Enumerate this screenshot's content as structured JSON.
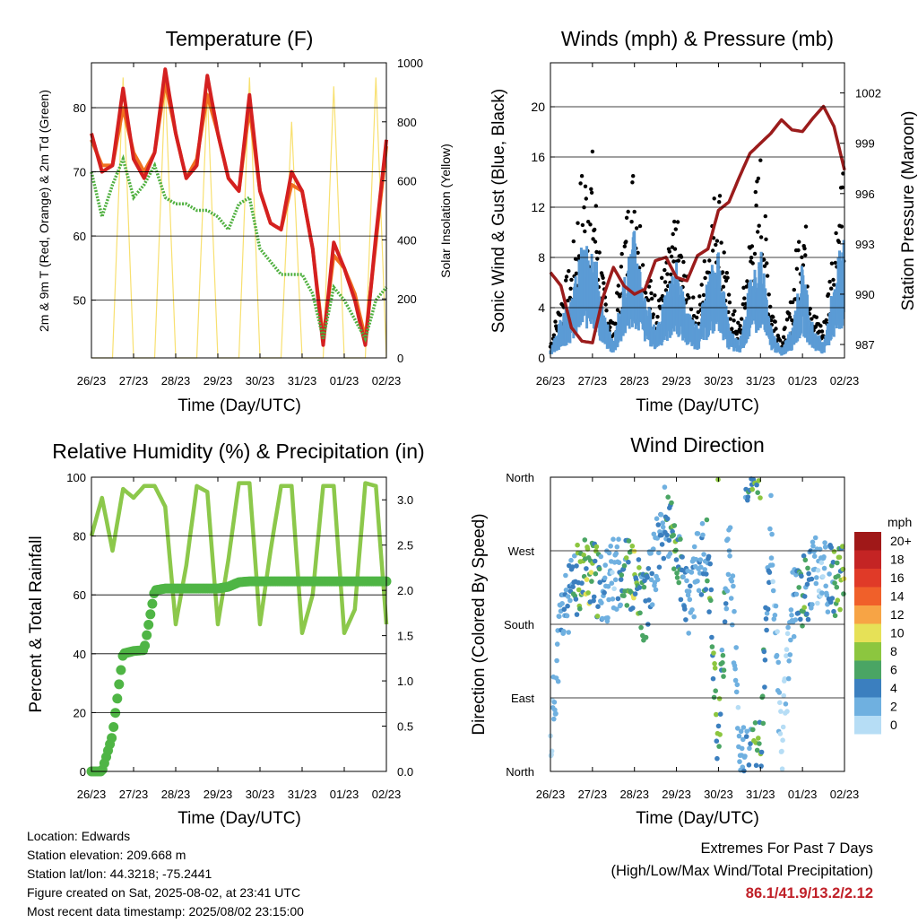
{
  "colors": {
    "t2m": "#d42020",
    "t9m": "#f07020",
    "td": "#50b040",
    "solar": "#f8e070",
    "gust": "#000000",
    "wind": "#5b9bd5",
    "pressure": "#9b1c1c",
    "rh": "#8cc84b",
    "precip": "#4fb545"
  },
  "day_ticks": [
    "26/23",
    "27/23",
    "28/23",
    "29/23",
    "30/23",
    "31/23",
    "01/23",
    "02/23"
  ],
  "x_label": "Time (Day/UTC)",
  "panels": {
    "temperature": {
      "title": "Temperature (F)",
      "ylabel_left": "2m & 9m T (Red, Orange) & 2m Td (Green)",
      "ylabel_right": "Solar Insolation (Yellow)",
      "left_ticks": [
        "50",
        "60",
        "70",
        "80"
      ],
      "right_ticks": [
        "0",
        "200",
        "400",
        "600",
        "800",
        "1000"
      ]
    },
    "winds": {
      "title": "Winds (mph) & Pressure (mb)",
      "ylabel_left": "Sonic Wind & Gust (Blue, Black)",
      "ylabel_right": "Station Pressure (Maroon)",
      "left_ticks": [
        "0",
        "4",
        "8",
        "12",
        "16",
        "20"
      ],
      "right_ticks": [
        "987",
        "990",
        "993",
        "996",
        "999",
        "1002"
      ]
    },
    "humidity": {
      "title": "Relative Humidity (%) & Precipitation (in)",
      "ylabel_left": "Percent & Total Rainfall",
      "left_ticks": [
        "0",
        "20",
        "40",
        "60",
        "80",
        "100"
      ],
      "right_ticks": [
        "0.0",
        "0.5",
        "1.0",
        "1.5",
        "2.0",
        "2.5",
        "3.0"
      ]
    },
    "direction": {
      "title": "Wind Direction",
      "ylabel_left": "Direction (Colored By Speed)",
      "dir_ticks": [
        "North",
        "East",
        "South",
        "West",
        "North"
      ],
      "legend_title": "mph",
      "legend_labels": [
        "20+",
        "18",
        "16",
        "14",
        "12",
        "10",
        "8",
        "6",
        "4",
        "2",
        "0"
      ],
      "legend_colors": [
        "#a01818",
        "#c42424",
        "#e03a28",
        "#f0602a",
        "#f7a445",
        "#e6e157",
        "#8cc63f",
        "#4aa564",
        "#3b7fbf",
        "#6fb0e0",
        "#b6ddf5"
      ]
    }
  },
  "chart_data": [
    {
      "type": "line",
      "title": "Temperature (F)",
      "xlabel": "Time (Day/UTC)",
      "ylabel": "2m & 9m T (Red, Orange) & 2m Td (Green)",
      "ylabel_right": "Solar Insolation (Yellow)",
      "x": [
        0.0,
        0.25,
        0.5,
        0.75,
        1.0,
        1.25,
        1.5,
        1.75,
        2.0,
        2.25,
        2.5,
        2.75,
        3.0,
        3.25,
        3.5,
        3.75,
        4.0,
        4.25,
        4.5,
        4.75,
        5.0,
        5.25,
        5.5,
        5.75,
        6.0,
        6.25,
        6.5,
        6.75,
        7.0
      ],
      "ylim": [
        41,
        87
      ],
      "ylim_right": [
        0,
        1000
      ],
      "series": [
        {
          "name": "2m T",
          "axis": "left",
          "values": [
            76,
            70,
            71,
            83,
            72,
            69,
            73,
            86,
            76,
            69,
            71,
            85,
            76,
            69,
            67,
            82,
            67,
            62,
            61,
            70,
            67,
            58,
            43,
            59,
            55,
            50,
            43,
            60,
            75
          ]
        },
        {
          "name": "9m T",
          "axis": "left",
          "values": [
            75,
            71,
            71,
            80,
            73,
            70,
            73,
            84,
            76,
            69,
            72,
            82,
            76,
            69,
            67,
            80,
            67,
            62,
            61,
            68,
            67,
            58,
            44,
            57,
            55,
            51,
            44,
            59,
            74
          ]
        },
        {
          "name": "2m Td",
          "axis": "left",
          "values": [
            70,
            63,
            68,
            72,
            66,
            68,
            71,
            66,
            65,
            65,
            64,
            64,
            63,
            61,
            65,
            66,
            58,
            56,
            54,
            54,
            54,
            51,
            44,
            52,
            50,
            47,
            44,
            50,
            52
          ]
        },
        {
          "name": "Solar Insolation",
          "axis": "right",
          "values": [
            0,
            0,
            0,
            950,
            0,
            0,
            0,
            930,
            0,
            0,
            0,
            900,
            0,
            0,
            0,
            950,
            0,
            0,
            0,
            800,
            0,
            0,
            0,
            920,
            0,
            0,
            0,
            950,
            0
          ]
        }
      ]
    },
    {
      "type": "scatter",
      "title": "Winds (mph) & Pressure (mb)",
      "xlabel": "Time (Day/UTC)",
      "ylabel": "Sonic Wind & Gust (Blue, Black)",
      "ylabel_right": "Station Pressure (Maroon)",
      "x": [
        0.0,
        0.25,
        0.5,
        0.75,
        1.0,
        1.25,
        1.5,
        1.75,
        2.0,
        2.25,
        2.5,
        2.75,
        3.0,
        3.25,
        3.5,
        3.75,
        4.0,
        4.25,
        4.5,
        4.75,
        5.0,
        5.25,
        5.5,
        5.75,
        6.0,
        6.25,
        6.5,
        6.75,
        7.0
      ],
      "ylim": [
        0,
        23.5
      ],
      "ylim_right": [
        986.2,
        1003.8
      ],
      "series": [
        {
          "name": "Gust",
          "axis": "left",
          "values": [
            1,
            4,
            6,
            12,
            13,
            5,
            2,
            8,
            13,
            6,
            4,
            6,
            9,
            5,
            3,
            8,
            12,
            4,
            2,
            8,
            13,
            4,
            1,
            4,
            11,
            3,
            2,
            8,
            14
          ]
        },
        {
          "name": "Sonic Wind",
          "axis": "left",
          "values": [
            0.5,
            2.5,
            4,
            7,
            8,
            3,
            1,
            5,
            8,
            4,
            2,
            4,
            6,
            3,
            2,
            5,
            7,
            2,
            1,
            5,
            7,
            2,
            0.5,
            2,
            6,
            2,
            1,
            5,
            8
          ]
        },
        {
          "name": "Station Pressure",
          "axis": "right",
          "values": [
            991.3,
            990.5,
            988.0,
            987.2,
            987.1,
            989.8,
            991.6,
            990.5,
            990.0,
            990.3,
            992.0,
            992.2,
            991.0,
            990.8,
            992.3,
            992.7,
            995.0,
            995.5,
            997.0,
            998.4,
            999.0,
            999.6,
            1000.4,
            999.8,
            999.7,
            1000.5,
            1001.2,
            1000.0,
            997.4
          ]
        }
      ]
    },
    {
      "type": "line",
      "title": "Relative Humidity (%) & Precipitation (in)",
      "xlabel": "Time (Day/UTC)",
      "ylabel": "Percent & Total Rainfall",
      "x": [
        0.0,
        0.25,
        0.5,
        0.75,
        1.0,
        1.25,
        1.5,
        1.75,
        2.0,
        2.25,
        2.5,
        2.75,
        3.0,
        3.25,
        3.5,
        3.75,
        4.0,
        4.25,
        4.5,
        4.75,
        5.0,
        5.25,
        5.5,
        5.75,
        6.0,
        6.25,
        6.5,
        6.75,
        7.0
      ],
      "ylim": [
        0,
        100
      ],
      "ylim_right": [
        0,
        3.25
      ],
      "series": [
        {
          "name": "Relative Humidity",
          "axis": "left",
          "values": [
            80,
            93,
            75,
            96,
            93,
            97,
            97,
            90,
            50,
            70,
            97,
            95,
            50,
            72,
            98,
            98,
            50,
            75,
            97,
            97,
            47,
            60,
            97,
            97,
            47,
            55,
            98,
            97,
            50
          ]
        },
        {
          "name": "Total Rainfall",
          "axis": "right",
          "values": [
            0,
            0,
            0.4,
            1.3,
            1.33,
            1.34,
            2.0,
            2.02,
            2.02,
            2.02,
            2.02,
            2.02,
            2.02,
            2.04,
            2.09,
            2.1,
            2.1,
            2.1,
            2.1,
            2.1,
            2.1,
            2.1,
            2.1,
            2.1,
            2.1,
            2.1,
            2.1,
            2.1,
            2.1
          ]
        }
      ]
    },
    {
      "type": "scatter",
      "title": "Wind Direction",
      "xlabel": "Time (Day/UTC)",
      "ylabel": "Direction (Colored By Speed)",
      "x": [
        0.0,
        0.25,
        0.5,
        0.75,
        1.0,
        1.25,
        1.5,
        1.75,
        2.0,
        2.25,
        2.5,
        2.75,
        3.0,
        3.25,
        3.5,
        3.75,
        4.0,
        4.25,
        4.5,
        4.75,
        5.0,
        5.25,
        5.5,
        5.75,
        6.0,
        6.25,
        6.5,
        6.75,
        7.0
      ],
      "ylim": [
        0,
        360
      ],
      "series": [
        {
          "name": "Direction",
          "values": [
            30,
            190,
            215,
            250,
            240,
            220,
            240,
            250,
            230,
            200,
            260,
            310,
            270,
            200,
            250,
            270,
            20,
            300,
            20,
            10,
            20,
            300,
            20,
            200,
            220,
            240,
            245,
            230,
            232
          ]
        },
        {
          "name": "Speed",
          "values": [
            0.5,
            2.5,
            4,
            7,
            8,
            3,
            1,
            5,
            8,
            4,
            2,
            4,
            6,
            3,
            2,
            5,
            7,
            2,
            1,
            5,
            7,
            2,
            0.5,
            2,
            6,
            2,
            1,
            5,
            8
          ]
        }
      ]
    }
  ],
  "footer": {
    "location": "Location: Edwards",
    "elevation": "Station elevation: 209.668 m",
    "latlon": "Station lat/lon: 44.3218; -75.2441",
    "created": "Figure created on Sat, 2025-08-02, at 23:41 UTC",
    "recent": "Most recent data timestamp: 2025/08/02 23:15:00"
  },
  "extremes": {
    "line1": "Extremes For Past 7 Days",
    "line2": "(High/Low/Max Wind/Total Precipitation)",
    "values": "86.1/41.9/13.2/2.12"
  }
}
